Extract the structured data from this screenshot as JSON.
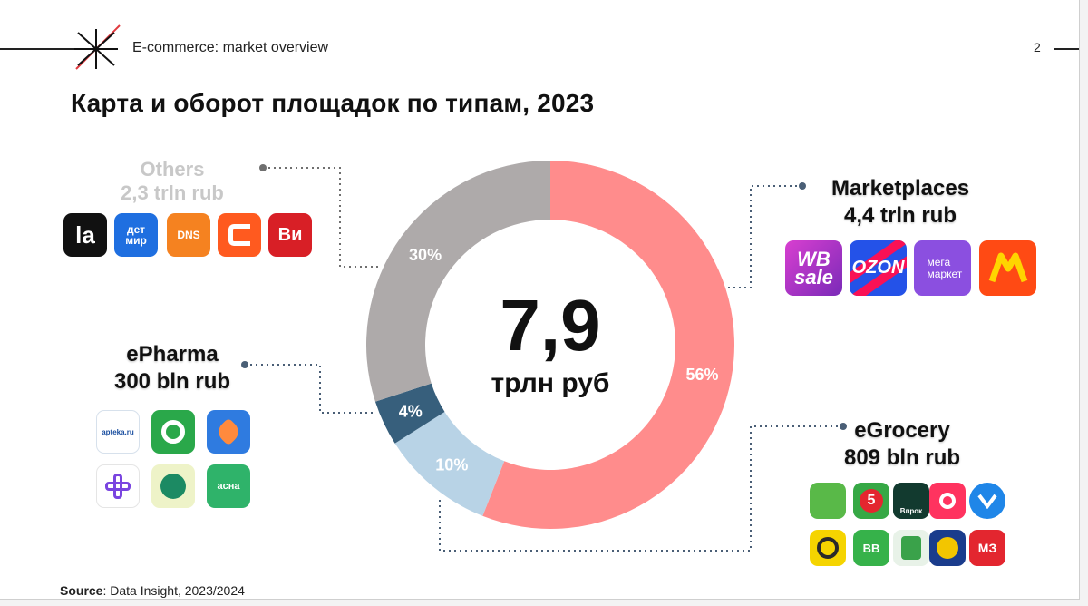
{
  "header": {
    "title": "E-commerce: market overview",
    "page_number": "2"
  },
  "main_title": "Карта и оборот площадок по типам, 2023",
  "center": {
    "value": "7,9",
    "unit": "трлн руб"
  },
  "segments": [
    {
      "name": "Marketplaces",
      "label_line1": "Marketplaces",
      "label_line2": "4,4 trln rub"
    },
    {
      "name": "eGrocery",
      "label_line1": "eGrocery",
      "label_line2": "809 bln rub"
    },
    {
      "name": "ePharma",
      "label_line1": "ePharma",
      "label_line2": "300 bln rub"
    },
    {
      "name": "Others",
      "label_line1": "Others",
      "label_line2": "2,3 trln rub"
    }
  ],
  "chart_data": {
    "type": "pie",
    "donut": true,
    "title": "Карта и оборот площадок по типам, 2023",
    "center_text": "7,9 трлн руб",
    "categories": [
      "Marketplaces",
      "eGrocery",
      "ePharma",
      "Others"
    ],
    "values": [
      56,
      10,
      4,
      30
    ],
    "value_labels": [
      "56%",
      "10%",
      "4%",
      "30%"
    ],
    "turnover": [
      "4,4 trln rub",
      "809 bln rub",
      "300 bln rub",
      "2,3 trln rub"
    ],
    "colors": [
      "#ff8c8c",
      "#b8d3e6",
      "#375f7c",
      "#aeaaaa"
    ],
    "start": "top, clockwise"
  },
  "logos": {
    "others": [
      {
        "text": "la",
        "icon": "lamoda-logo",
        "bg": "#111111"
      },
      {
        "text": "дет мир",
        "icon": "detmir-logo",
        "bg": "#1f6fe0"
      },
      {
        "text": "DNS",
        "icon": "dns-logo",
        "bg": "#f58220"
      },
      {
        "text": "",
        "icon": "citilink-logo",
        "bg": "#ff5a1f"
      },
      {
        "text": "Ви",
        "icon": "vseinstrumenti-logo",
        "bg": "#d81f26"
      }
    ],
    "marketplaces": [
      {
        "text": "WB sale",
        "icon": "wildberries-logo",
        "bg": "#a73ac2"
      },
      {
        "text": "OZON",
        "icon": "ozon-logo",
        "bg": "#2452e8"
      },
      {
        "text": "мега маркет",
        "icon": "megamarket-logo",
        "bg": "#8b4fe0"
      },
      {
        "text": "",
        "icon": "yandex-market-logo",
        "bg": "#ff4a14"
      }
    ],
    "epharma": [
      {
        "text": "apteka.ru",
        "icon": "apteka-ru-logo",
        "bg": "#ffffff"
      },
      {
        "text": "",
        "icon": "zdravcity-logo",
        "bg": "#2aa84a"
      },
      {
        "text": "",
        "icon": "eapteka-logo",
        "bg": "#2f7be0"
      },
      {
        "text": "",
        "icon": "plus-pharmacy-logo",
        "bg": "#ffffff"
      },
      {
        "text": "",
        "icon": "tree-pharmacy-logo",
        "bg": "#eef3c8"
      },
      {
        "text": "асна",
        "icon": "asna-logo",
        "bg": "#2fb36a"
      }
    ],
    "egrocery": [
      {
        "text": "",
        "icon": "perekrestok-logo",
        "bg": "#59b948"
      },
      {
        "text": "5",
        "icon": "pyaterochka-logo",
        "bg": "#36a845"
      },
      {
        "text": "Впрок",
        "icon": "vprok-logo",
        "bg": "#123a2f"
      },
      {
        "text": "",
        "icon": "samokat-logo",
        "bg": "#ff335f"
      },
      {
        "text": "",
        "icon": "vkusvill-logo",
        "bg": "#1f86e8"
      },
      {
        "text": "",
        "icon": "spiral-logo",
        "bg": "#f5d400"
      },
      {
        "text": "ВВ",
        "icon": "vkusvill-green-logo",
        "bg": "#36b24a"
      },
      {
        "text": "",
        "icon": "lenta-logo",
        "bg": "#e8f2e8"
      },
      {
        "text": "",
        "icon": "auchan-logo",
        "bg": "#1a3c8c"
      },
      {
        "text": "МЗ",
        "icon": "magnit-logo",
        "bg": "#e3262f"
      }
    ]
  },
  "source": {
    "label": "Source",
    "text": ": Data Insight, 2023/2024"
  }
}
